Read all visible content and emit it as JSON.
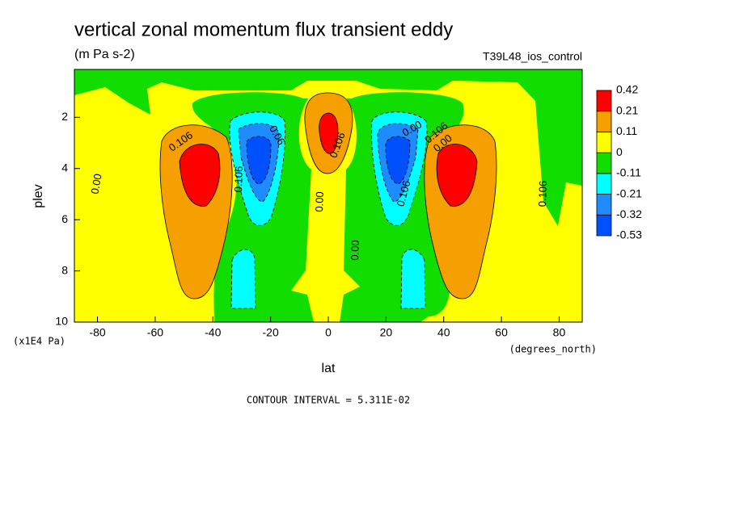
{
  "chart_data": {
    "type": "contour",
    "title": "vertical zonal momentum flux transient eddy",
    "subtitle": "(m Pa s-2)",
    "run_label": "T39L48_ios_control",
    "xlabel": "lat",
    "ylabel": "plev",
    "x_unit_label": "(degrees_north)",
    "y_unit_label": "(x1E4 Pa)",
    "xlim": [
      -88,
      88
    ],
    "ylim": [
      10,
      0.13
    ],
    "xticks": [
      -80,
      -60,
      -40,
      -20,
      0,
      20,
      40,
      60,
      80
    ],
    "yticks": [
      2,
      4,
      6,
      8,
      10
    ],
    "levels": [
      -0.53,
      -0.32,
      -0.21,
      -0.11,
      0,
      0.11,
      0.21,
      0.42
    ],
    "colors": [
      "#0050ff",
      "#1e8cff",
      "#00ffff",
      "#11dd00",
      "#ffff00",
      "#f5a000",
      "#ff0000"
    ],
    "contour_labels": [
      "0.106",
      "0.00",
      "0.106",
      "0.06",
      "0.00",
      "0.106",
      "0.106",
      "0.00",
      "0.106",
      "0.00",
      "0.106",
      "0.00"
    ],
    "annotation": "CONTOUR INTERVAL = 5.311E-02"
  }
}
